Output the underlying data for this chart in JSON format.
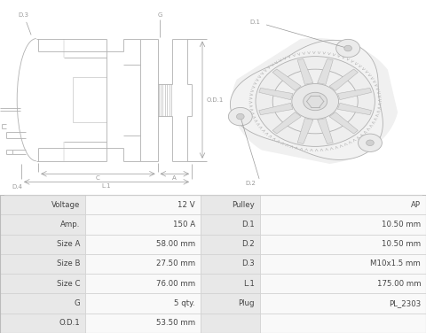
{
  "bg_color": "#ffffff",
  "table_bg_label": "#e8e8e8",
  "table_bg_value": "#f5f5f5",
  "table_border": "#d0d0d0",
  "table_data": [
    [
      "Voltage",
      "12 V",
      "Pulley",
      "AP"
    ],
    [
      "Amp.",
      "150 A",
      "D.1",
      "10.50 mm"
    ],
    [
      "Size A",
      "58.00 mm",
      "D.2",
      "10.50 mm"
    ],
    [
      "Size B",
      "27.50 mm",
      "D.3",
      "M10x1.5 mm"
    ],
    [
      "Size C",
      "76.00 mm",
      "L.1",
      "175.00 mm"
    ],
    [
      "G",
      "5 qty.",
      "Plug",
      "PL_2303"
    ],
    [
      "O.D.1",
      "53.50 mm",
      "",
      ""
    ]
  ],
  "lc": "#b0b0b0",
  "dc": "#999999",
  "fc": "#e8e8e8",
  "lw": 0.6,
  "fs": 5.5
}
